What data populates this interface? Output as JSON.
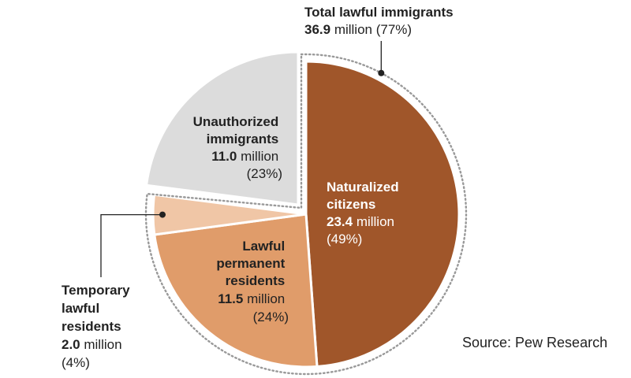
{
  "chart_data": {
    "type": "pie",
    "title": "",
    "slices": [
      {
        "name": "Naturalized citizens",
        "value": 23.4,
        "percent": 49,
        "value_text": "23.4",
        "unit": " million",
        "percent_text": "(49%)",
        "color": "#a0562a"
      },
      {
        "name": "Lawful permanent residents",
        "value": 11.5,
        "percent": 24,
        "value_text": "11.5",
        "unit": " million",
        "percent_text": "(24%)",
        "color": "#e09c6a"
      },
      {
        "name": "Temporary lawful residents",
        "value": 2.0,
        "percent": 4,
        "value_text": "2.0",
        "unit": " million",
        "percent_text": "(4%)",
        "color": "#f0c6a6"
      },
      {
        "name": "Unauthorized immigrants",
        "value": 11.0,
        "percent": 23,
        "value_text": "11.0",
        "unit": " million",
        "percent_text": "(23%)",
        "color": "#dcdcdc"
      }
    ],
    "labels": {
      "naturalized": {
        "lines": [
          "Naturalized",
          "citizens"
        ]
      },
      "permanent": {
        "lines": [
          "Lawful",
          "permanent",
          "residents"
        ]
      },
      "temporary": {
        "lines": [
          "Temporary",
          "lawful",
          "residents"
        ]
      },
      "unauthorized": {
        "lines": [
          "Unauthorized",
          "immigrants"
        ]
      }
    },
    "annotation": {
      "title": "Total lawful immigrants",
      "value_text": "36.9",
      "unit": " million",
      "percent_text": "(77%)",
      "percent": 77
    }
  },
  "source": "Source: Pew Research"
}
